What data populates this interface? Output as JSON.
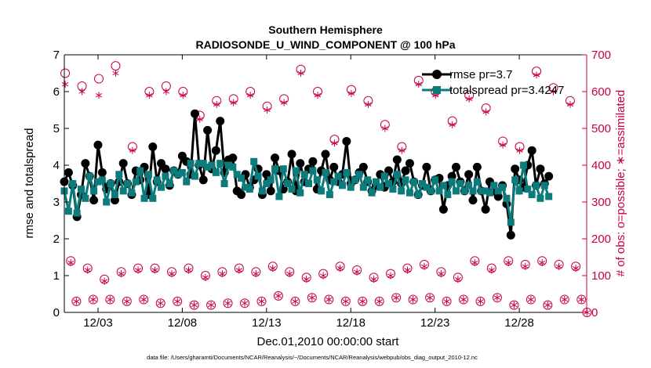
{
  "chart_data": {
    "type": "line",
    "title_line1": "Southern Hemisphere",
    "title_line2": "RADIOSONDE_U_WIND_COMPONENT @ 100 hPa",
    "xlabel": "Dec.01,2010 00:00:00 start",
    "ylabel_left": "rmse and totalspread",
    "ylabel_right": "# of obs: o=possible; ∗=assimilated",
    "footnote": "data file: /Users/gharamti/Documents/NCAR/Reanalysis/~/Documents/NCAR/Reanalysis/webpub/obs_diag_output_2010-12.nc",
    "xlim": [
      1,
      32
    ],
    "ylim_left": [
      0,
      7
    ],
    "ylim_right": [
      0,
      700
    ],
    "left_ticks": [
      "0",
      "1",
      "2",
      "3",
      "4",
      "5",
      "6",
      "7"
    ],
    "right_ticks": [
      "0",
      "100",
      "200",
      "300",
      "400",
      "500",
      "600",
      "700"
    ],
    "x_ticks": [
      {
        "day": 3,
        "label": "12/03"
      },
      {
        "day": 8,
        "label": "12/08"
      },
      {
        "day": 13,
        "label": "12/13"
      },
      {
        "day": 18,
        "label": "12/18"
      },
      {
        "day": 23,
        "label": "12/23"
      },
      {
        "day": 28,
        "label": "12/28"
      }
    ],
    "x_start": 1.0,
    "x_step": 0.25,
    "series": [
      {
        "name": "rmse pr=3.7",
        "color": "#000000",
        "marker": "circle",
        "values": [
          3.55,
          3.8,
          3.45,
          2.6,
          3.2,
          4.05,
          3.7,
          3.05,
          4.55,
          3.8,
          3.35,
          3.5,
          3.05,
          3.55,
          4.05,
          3.5,
          3.2,
          3.85,
          3.6,
          3.95,
          3.2,
          4.5,
          3.55,
          4.05,
          3.9,
          3.45,
          3.85,
          3.75,
          4.25,
          4.1,
          3.75,
          5.4,
          4.0,
          3.6,
          4.95,
          3.9,
          4.4,
          5.2,
          3.8,
          4.15,
          4.2,
          3.3,
          3.2,
          3.75,
          3.4,
          3.6,
          3.9,
          3.2,
          3.75,
          3.3,
          4.2,
          3.85,
          3.35,
          3.55,
          4.3,
          3.3,
          4.05,
          3.55,
          3.9,
          4.1,
          3.35,
          3.85,
          4.3,
          3.6,
          3.95,
          3.55,
          3.75,
          4.65,
          3.5,
          3.6,
          3.8,
          3.95,
          3.55,
          3.3,
          3.45,
          3.75,
          3.4,
          3.85,
          3.55,
          4.15,
          3.5,
          3.85,
          4.05,
          3.55,
          3.2,
          3.45,
          3.95,
          3.3,
          3.6,
          3.65,
          2.8,
          3.45,
          3.7,
          3.95,
          3.55,
          3.3,
          3.75,
          3.05,
          3.95,
          3.3,
          2.8,
          3.55,
          3.3,
          3.15,
          3.45,
          2.95,
          2.1,
          3.9,
          3.6,
          3.4,
          4.0,
          4.4,
          3.45,
          3.9,
          3.5,
          3.7
        ]
      },
      {
        "name": "totalspread pr=3.4247",
        "color": "#0b7b7b",
        "marker": "square",
        "values": [
          3.3,
          2.75,
          3.5,
          2.7,
          3.35,
          3.1,
          3.7,
          3.3,
          3.55,
          3.6,
          3.0,
          3.5,
          3.2,
          3.75,
          3.3,
          3.5,
          3.25,
          3.55,
          3.85,
          3.1,
          3.75,
          3.1,
          3.6,
          3.4,
          3.7,
          3.5,
          3.85,
          3.75,
          3.8,
          3.55,
          4.05,
          3.7,
          4.05,
          4.05,
          3.95,
          4.0,
          3.8,
          4.05,
          3.5,
          4.0,
          3.95,
          3.75,
          3.65,
          3.4,
          3.35,
          4.1,
          3.7,
          3.3,
          3.5,
          3.6,
          3.9,
          3.15,
          3.9,
          3.5,
          3.35,
          3.85,
          3.25,
          3.75,
          3.5,
          3.85,
          3.6,
          3.3,
          3.8,
          3.2,
          3.55,
          3.7,
          3.45,
          3.8,
          3.4,
          3.6,
          3.75,
          3.4,
          3.6,
          3.25,
          3.55,
          3.4,
          3.7,
          3.5,
          3.35,
          3.75,
          3.3,
          3.6,
          3.25,
          3.55,
          3.2,
          3.5,
          3.4,
          3.3,
          3.6,
          3.3,
          3.45,
          3.2,
          3.55,
          3.3,
          3.5,
          3.3,
          3.45,
          3.3,
          3.55,
          3.3,
          3.3,
          3.25,
          3.45,
          3.3,
          3.4,
          3.1,
          2.45,
          3.6,
          3.3,
          4.0,
          3.35,
          3.2,
          3.45,
          3.1,
          3.45,
          3.15
        ]
      }
    ],
    "obs_possible": [
      650,
      140,
      30,
      615,
      120,
      35,
      635,
      90,
      35,
      670,
      110,
      30,
      450,
      120,
      35,
      600,
      120,
      25,
      615,
      110,
      30,
      600,
      120,
      20,
      535,
      100,
      20,
      575,
      110,
      25,
      580,
      120,
      25,
      600,
      110,
      30,
      560,
      125,
      45,
      580,
      110,
      30,
      660,
      95,
      40,
      600,
      105,
      35,
      470,
      125,
      30,
      605,
      115,
      30,
      575,
      95,
      30,
      510,
      105,
      40,
      450,
      120,
      35,
      630,
      130,
      40,
      600,
      110,
      30,
      520,
      95,
      35,
      590,
      140,
      30,
      555,
      120,
      40,
      465,
      140,
      20,
      450,
      130,
      35,
      655,
      140,
      20,
      610,
      130,
      35,
      575,
      125,
      35,
      0
    ],
    "obs_assimilated": [
      620,
      135,
      30,
      600,
      115,
      35,
      590,
      85,
      35,
      650,
      105,
      30,
      440,
      115,
      35,
      590,
      115,
      25,
      600,
      105,
      30,
      590,
      115,
      20,
      525,
      95,
      20,
      565,
      105,
      25,
      570,
      115,
      25,
      590,
      105,
      30,
      550,
      120,
      45,
      570,
      105,
      30,
      650,
      90,
      40,
      590,
      100,
      35,
      460,
      120,
      30,
      595,
      110,
      30,
      565,
      90,
      30,
      500,
      100,
      40,
      440,
      115,
      35,
      620,
      125,
      40,
      590,
      105,
      30,
      510,
      90,
      35,
      580,
      135,
      30,
      545,
      115,
      40,
      455,
      135,
      20,
      440,
      125,
      35,
      645,
      135,
      20,
      600,
      125,
      35,
      565,
      120,
      35,
      0
    ],
    "obs_x_start": 1.05,
    "obs_x_step": 0.333
  }
}
